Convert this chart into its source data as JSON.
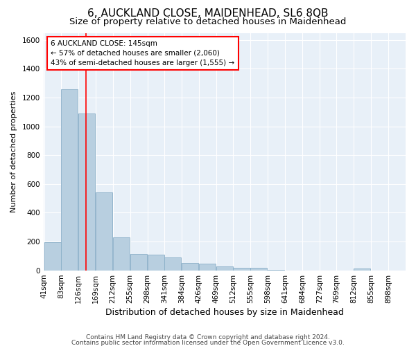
{
  "title1": "6, AUCKLAND CLOSE, MAIDENHEAD, SL6 8QB",
  "title2": "Size of property relative to detached houses in Maidenhead",
  "xlabel": "Distribution of detached houses by size in Maidenhead",
  "ylabel": "Number of detached properties",
  "footer1": "Contains HM Land Registry data © Crown copyright and database right 2024.",
  "footer2": "Contains public sector information licensed under the Open Government Licence v3.0.",
  "annotation_title": "6 AUCKLAND CLOSE: 145sqm",
  "annotation_line1": "← 57% of detached houses are smaller (2,060)",
  "annotation_line2": "43% of semi-detached houses are larger (1,555) →",
  "bar_color": "#b8cfe0",
  "bar_edge_color": "#8aafc8",
  "red_line_x": 145,
  "annotation_box_color": "white",
  "annotation_box_edge_color": "red",
  "bins": [
    41,
    83,
    126,
    169,
    212,
    255,
    298,
    341,
    384,
    426,
    469,
    512,
    555,
    598,
    641,
    684,
    727,
    769,
    812,
    855,
    898
  ],
  "values": [
    195,
    1260,
    1090,
    540,
    230,
    115,
    110,
    90,
    50,
    45,
    25,
    15,
    18,
    5,
    0,
    0,
    0,
    0,
    12,
    0,
    0
  ],
  "ylim": [
    0,
    1650
  ],
  "yticks": [
    0,
    200,
    400,
    600,
    800,
    1000,
    1200,
    1400,
    1600
  ],
  "bg_color": "#e8f0f8",
  "grid_color": "white",
  "title1_fontsize": 11,
  "title2_fontsize": 9.5,
  "xlabel_fontsize": 9,
  "ylabel_fontsize": 8,
  "tick_fontsize": 7.5,
  "annotation_fontsize": 7.5,
  "footer_fontsize": 6.5
}
